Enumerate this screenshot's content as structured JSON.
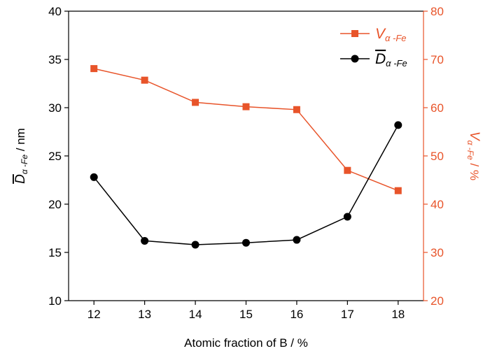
{
  "chart_data": {
    "type": "line",
    "title": "",
    "xlabel": "Atomic fraction of B / %",
    "x": [
      12,
      13,
      14,
      15,
      16,
      17,
      18
    ],
    "xlim": [
      11.5,
      18.5
    ],
    "xticks": [
      "12",
      "13",
      "14",
      "15",
      "16",
      "17",
      "18"
    ],
    "left_axis": {
      "label": {
        "main": "D",
        "sub": "α -Fe",
        "unit": " / nm",
        "overline": true
      },
      "ylim": [
        10,
        40
      ],
      "ticks": [
        "10",
        "15",
        "20",
        "25",
        "30",
        "35",
        "40"
      ]
    },
    "right_axis": {
      "label": {
        "main": "V",
        "sub": "α -Fe",
        "unit": " / %",
        "overline": false
      },
      "ylim": [
        20,
        80
      ],
      "ticks": [
        "20",
        "30",
        "40",
        "50",
        "60",
        "70",
        "80"
      ],
      "color": "#e8542a"
    },
    "series": [
      {
        "axis": "right",
        "color": "#e8542a",
        "marker": "square",
        "legend": {
          "main": "V",
          "sub": "α -Fe",
          "overline": false
        },
        "values": [
          68.1,
          65.7,
          61.1,
          60.2,
          59.6,
          47.0,
          42.8
        ]
      },
      {
        "axis": "left",
        "color": "#000000",
        "marker": "circle",
        "legend": {
          "main": "D",
          "sub": "α -Fe",
          "overline": true
        },
        "values": [
          22.8,
          16.2,
          15.8,
          16.0,
          16.3,
          18.7,
          28.2
        ]
      }
    ],
    "legend_position": "top-right",
    "grid": false
  }
}
